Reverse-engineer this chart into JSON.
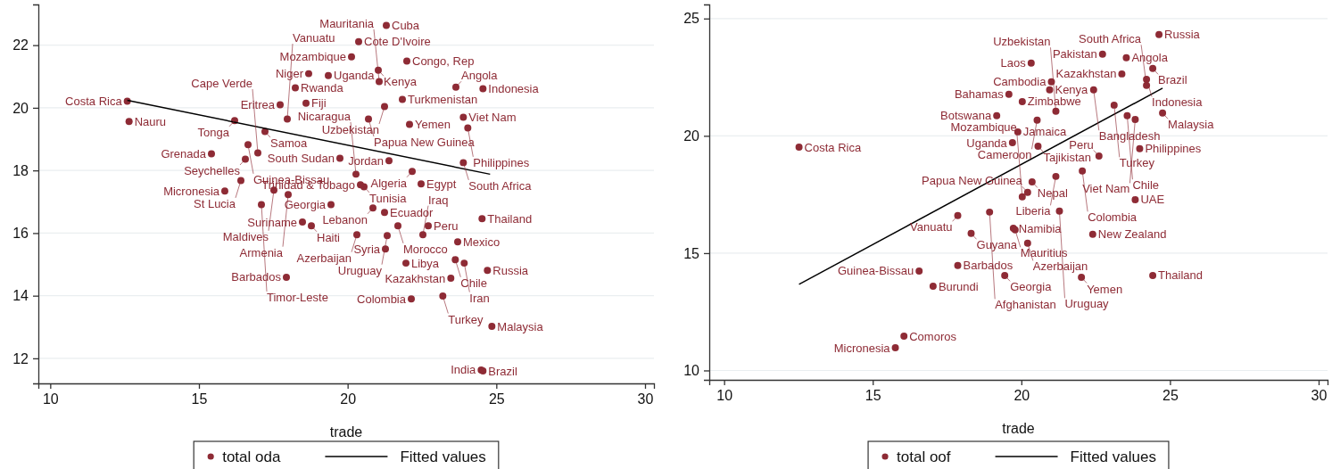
{
  "chart_data": [
    {
      "type": "scatter",
      "xlabel": "trade",
      "xlim": [
        9.6,
        30.3
      ],
      "ylim": [
        11.2,
        23.3
      ],
      "xticks": [
        10,
        15,
        20,
        25,
        30
      ],
      "yticks": [
        12,
        14,
        16,
        18,
        20,
        22
      ],
      "grid": "y",
      "legend": "bottom",
      "series": [
        {
          "name": "total oda",
          "type": "scatter",
          "marker": "circle",
          "color": "#8e2b35",
          "x": [
            12.59,
            12.65,
            21.3,
            20.37,
            20.13,
            21.99,
            18.69,
            18.24,
            17.73,
            18.6,
            19.35,
            21.03,
            21.06,
            23.64,
            24.55,
            21.84,
            21.24,
            20.7,
            23.89,
            24.04,
            22.08,
            19.74,
            21.39,
            23.89,
            22.17,
            22.47,
            20.55,
            19.44,
            20.85,
            21.24,
            24.52,
            21.69,
            22.71,
            18.48,
            18.78,
            20.31,
            21.33,
            22.53,
            23.7,
            21.27,
            21.96,
            23.62,
            23.92,
            24.7,
            17.94,
            23.47,
            23.2,
            22.14,
            24.85,
            24.49,
            24.55,
            16.2,
            17.22,
            16.65,
            15.42,
            16.98,
            16.56,
            16.41,
            15.87,
            17.52,
            18.0,
            17.1,
            17.97,
            20.28,
            20.43
          ],
          "values": [
            20.21,
            19.56,
            22.63,
            22.11,
            21.63,
            21.49,
            21.09,
            20.64,
            20.1,
            20.15,
            21.03,
            21.2,
            20.84,
            20.66,
            20.61,
            20.27,
            20.04,
            19.64,
            19.7,
            19.36,
            19.47,
            18.39,
            18.31,
            18.25,
            17.97,
            17.57,
            17.48,
            16.91,
            16.8,
            16.66,
            16.46,
            16.23,
            16.23,
            16.35,
            16.23,
            15.95,
            15.92,
            15.95,
            15.72,
            15.49,
            15.04,
            15.15,
            15.04,
            14.81,
            14.59,
            14.56,
            13.99,
            13.9,
            13.02,
            11.63,
            11.6,
            19.59,
            19.24,
            18.82,
            18.53,
            18.56,
            18.36,
            17.68,
            17.34,
            17.37,
            17.23,
            16.91,
            19.64,
            17.88,
            17.54
          ]
        },
        {
          "name": "Fitted values",
          "type": "line",
          "marker": "none",
          "color": "#000000",
          "x": [
            12.59,
            24.79
          ],
          "values": [
            20.24,
            17.88
          ]
        }
      ],
      "annotations": [
        {
          "text": "Costa Rica",
          "x": 12.59,
          "y": 20.21
        },
        {
          "text": "Nauru",
          "x": 12.65,
          "y": 19.56
        },
        {
          "text": "Cuba",
          "x": 21.3,
          "y": 22.63
        },
        {
          "text": "Cote D'Ivoire",
          "x": 20.37,
          "y": 22.11
        },
        {
          "text": "Mozambique",
          "x": 20.13,
          "y": 21.63
        },
        {
          "text": "Congo, Rep",
          "x": 21.99,
          "y": 21.49
        },
        {
          "text": "Niger",
          "x": 18.69,
          "y": 21.09
        },
        {
          "text": "Rwanda",
          "x": 18.24,
          "y": 20.64
        },
        {
          "text": "Eritrea",
          "x": 17.73,
          "y": 20.1
        },
        {
          "text": "Fiji",
          "x": 18.6,
          "y": 20.15
        },
        {
          "text": "Uganda",
          "x": 19.35,
          "y": 21.03
        },
        {
          "text": "Kenya",
          "x": 21.03,
          "y": 21.2
        },
        {
          "text": "Mauritania",
          "x": 21.06,
          "y": 20.84
        },
        {
          "text": "Angola",
          "x": 23.64,
          "y": 20.66
        },
        {
          "text": "Indonesia",
          "x": 24.55,
          "y": 20.61
        },
        {
          "text": "Turkmenistan",
          "x": 21.84,
          "y": 20.27
        },
        {
          "text": "Uzbekistan",
          "x": 21.24,
          "y": 20.04
        },
        {
          "text": "Papua New Guinea",
          "x": 20.7,
          "y": 19.64
        },
        {
          "text": "Viet Nam",
          "x": 23.89,
          "y": 19.7
        },
        {
          "text": "Philippines",
          "x": 24.04,
          "y": 19.36
        },
        {
          "text": "Yemen",
          "x": 22.08,
          "y": 19.47
        },
        {
          "text": "South Sudan",
          "x": 19.74,
          "y": 18.39
        },
        {
          "text": "Jordan",
          "x": 21.39,
          "y": 18.31
        },
        {
          "text": "South Africa",
          "x": 23.89,
          "y": 18.25
        },
        {
          "text": "Algeria",
          "x": 22.17,
          "y": 17.97
        },
        {
          "text": "Egypt",
          "x": 22.47,
          "y": 17.57
        },
        {
          "text": "Tunisia",
          "x": 20.55,
          "y": 17.48
        },
        {
          "text": "Georgia",
          "x": 19.44,
          "y": 16.91
        },
        {
          "text": "Lebanon",
          "x": 20.85,
          "y": 16.8
        },
        {
          "text": "Ecuador",
          "x": 21.24,
          "y": 16.66
        },
        {
          "text": "Thailand",
          "x": 24.52,
          "y": 16.46
        },
        {
          "text": "Morocco",
          "x": 21.69,
          "y": 16.23
        },
        {
          "text": "Peru",
          "x": 22.71,
          "y": 16.23
        },
        {
          "text": "Suriname",
          "x": 18.48,
          "y": 16.35
        },
        {
          "text": "Haiti",
          "x": 18.78,
          "y": 16.23
        },
        {
          "text": "Azerbaijan",
          "x": 20.31,
          "y": 15.95
        },
        {
          "text": "Uruguay",
          "x": 21.33,
          "y": 15.92
        },
        {
          "text": "Iraq",
          "x": 22.53,
          "y": 15.95
        },
        {
          "text": "Mexico",
          "x": 23.7,
          "y": 15.72
        },
        {
          "text": "Syria",
          "x": 21.27,
          "y": 15.49
        },
        {
          "text": "Libya",
          "x": 21.96,
          "y": 15.04
        },
        {
          "text": "Chile",
          "x": 23.62,
          "y": 15.15
        },
        {
          "text": "Iran",
          "x": 23.92,
          "y": 15.04
        },
        {
          "text": "Russia",
          "x": 24.7,
          "y": 14.81
        },
        {
          "text": "Barbados",
          "x": 17.94,
          "y": 14.59
        },
        {
          "text": "Kazakhstan",
          "x": 23.47,
          "y": 14.56
        },
        {
          "text": "Turkey",
          "x": 23.2,
          "y": 13.99
        },
        {
          "text": "Colombia",
          "x": 22.14,
          "y": 13.9
        },
        {
          "text": "Malaysia",
          "x": 24.85,
          "y": 13.02
        },
        {
          "text": "India",
          "x": 24.49,
          "y": 11.63
        },
        {
          "text": "Brazil",
          "x": 24.55,
          "y": 11.6
        },
        {
          "text": "Tonga",
          "x": 16.2,
          "y": 19.59
        },
        {
          "text": "Samoa",
          "x": 17.22,
          "y": 19.24
        },
        {
          "text": "Guinea-Bissau",
          "x": 16.65,
          "y": 18.82
        },
        {
          "text": "Grenada",
          "x": 15.42,
          "y": 18.53
        },
        {
          "text": "Cape Verde",
          "x": 16.98,
          "y": 18.56
        },
        {
          "text": "Seychelles",
          "x": 16.56,
          "y": 18.36
        },
        {
          "text": "St Lucia",
          "x": 16.41,
          "y": 17.68
        },
        {
          "text": "Micronesia",
          "x": 15.87,
          "y": 17.34
        },
        {
          "text": "Maldives",
          "x": 17.52,
          "y": 17.37
        },
        {
          "text": "Armenia",
          "x": 18.0,
          "y": 17.23
        },
        {
          "text": "Timor-Leste",
          "x": 17.1,
          "y": 16.91
        },
        {
          "text": "Vanuatu",
          "x": 17.97,
          "y": 19.64
        },
        {
          "text": "Nicaragua",
          "x": 20.28,
          "y": 17.88
        },
        {
          "text": "Trinidad & Tobago",
          "x": 20.43,
          "y": 17.54
        }
      ]
    },
    {
      "type": "scatter",
      "xlabel": "trade",
      "xlim": [
        9.5,
        30.3
      ],
      "ylim": [
        9.6,
        25.6
      ],
      "xticks": [
        10,
        15,
        20,
        25,
        30
      ],
      "yticks": [
        10,
        15,
        20,
        25
      ],
      "grid": "y",
      "legend": "bottom",
      "series": [
        {
          "name": "total oof",
          "type": "scatter",
          "marker": "circle",
          "color": "#8e2b35",
          "x": [
            12.52,
            17.86,
            18.31,
            19.73,
            19.79,
            20.21,
            22.4,
            17.86,
            16.56,
            19.44,
            22.02,
            24.42,
            17.03,
            16.05,
            15.76,
            24.63,
            22.73,
            20.33,
            23.53,
            24.42,
            23.38,
            24.21,
            24.21,
            21.01,
            20.95,
            22.43,
            19.58,
            20.03,
            23.12,
            21.16,
            24.75,
            23.56,
            23.83,
            20.53,
            19.17,
            19.88,
            19.7,
            23.98,
            20.56,
            22.61,
            22.05,
            21.16,
            20.36,
            20.21,
            23.83,
            20.03,
            21.28,
            18.93
          ],
          "values": [
            19.52,
            16.6,
            15.84,
            16.06,
            15.99,
            15.42,
            15.8,
            14.47,
            14.24,
            14.05,
            13.97,
            14.05,
            13.59,
            11.46,
            10.97,
            24.32,
            23.48,
            23.1,
            23.33,
            22.87,
            22.64,
            22.41,
            22.15,
            22.3,
            21.96,
            21.96,
            21.77,
            21.46,
            21.31,
            21.05,
            20.97,
            20.86,
            20.7,
            20.67,
            20.86,
            20.17,
            19.71,
            19.45,
            19.56,
            19.14,
            18.5,
            18.27,
            18.04,
            17.59,
            17.28,
            17.4,
            16.79,
            16.75
          ]
        },
        {
          "name": "Fitted values",
          "type": "line",
          "marker": "none",
          "color": "#000000",
          "x": [
            12.52,
            24.75
          ],
          "values": [
            13.67,
            22.03
          ]
        }
      ],
      "annotations": [
        {
          "text": "Costa Rica",
          "x": 12.52,
          "y": 19.52
        },
        {
          "text": "Vanuatu",
          "x": 17.86,
          "y": 16.6
        },
        {
          "text": "Guyana",
          "x": 18.31,
          "y": 15.84
        },
        {
          "text": "Namibia",
          "x": 19.73,
          "y": 16.06
        },
        {
          "text": "Mauritius",
          "x": 19.79,
          "y": 15.99
        },
        {
          "text": "Azerbaijan",
          "x": 20.21,
          "y": 15.42
        },
        {
          "text": "New Zealand",
          "x": 22.4,
          "y": 15.8
        },
        {
          "text": "Barbados",
          "x": 17.86,
          "y": 14.47
        },
        {
          "text": "Guinea-Bissau",
          "x": 16.56,
          "y": 14.24
        },
        {
          "text": "Georgia",
          "x": 19.44,
          "y": 14.05
        },
        {
          "text": "Yemen",
          "x": 22.02,
          "y": 13.97
        },
        {
          "text": "Thailand",
          "x": 24.42,
          "y": 14.05
        },
        {
          "text": "Burundi",
          "x": 17.03,
          "y": 13.59
        },
        {
          "text": "Comoros",
          "x": 16.05,
          "y": 11.46
        },
        {
          "text": "Micronesia",
          "x": 15.76,
          "y": 10.97
        },
        {
          "text": "Russia",
          "x": 24.63,
          "y": 24.32
        },
        {
          "text": "Pakistan",
          "x": 22.73,
          "y": 23.48
        },
        {
          "text": "Laos",
          "x": 20.33,
          "y": 23.1
        },
        {
          "text": "Angola",
          "x": 23.53,
          "y": 23.33
        },
        {
          "text": "Brazil",
          "x": 24.42,
          "y": 22.87
        },
        {
          "text": "Kazakhstan",
          "x": 23.38,
          "y": 22.64
        },
        {
          "text": "Indonesia",
          "x": 24.21,
          "y": 22.41
        },
        {
          "text": "South Africa",
          "x": 24.21,
          "y": 22.15
        },
        {
          "text": "Cambodia",
          "x": 21.01,
          "y": 22.3
        },
        {
          "text": "Kenya",
          "x": 20.95,
          "y": 21.96
        },
        {
          "text": "Bangladesh",
          "x": 22.43,
          "y": 21.96
        },
        {
          "text": "Bahamas",
          "x": 19.58,
          "y": 21.77
        },
        {
          "text": "Zimbabwe",
          "x": 20.03,
          "y": 21.46
        },
        {
          "text": "Turkey",
          "x": 23.12,
          "y": 21.31
        },
        {
          "text": "Uzbekistan",
          "x": 21.16,
          "y": 21.05
        },
        {
          "text": "Malaysia",
          "x": 24.75,
          "y": 20.97
        },
        {
          "text": "Chile",
          "x": 23.56,
          "y": 20.86
        },
        {
          "text": "Viet Nam",
          "x": 23.83,
          "y": 20.7
        },
        {
          "text": "Cameroon",
          "x": 20.53,
          "y": 20.67
        },
        {
          "text": "Botswana",
          "x": 19.17,
          "y": 20.86
        },
        {
          "text": "Jamaica",
          "x": 19.88,
          "y": 20.17
        },
        {
          "text": "Uganda",
          "x": 19.7,
          "y": 19.71
        },
        {
          "text": "Philippines",
          "x": 23.98,
          "y": 19.45
        },
        {
          "text": "Tajikistan",
          "x": 20.56,
          "y": 19.56
        },
        {
          "text": "Peru",
          "x": 22.61,
          "y": 19.14
        },
        {
          "text": "Colombia",
          "x": 22.05,
          "y": 18.5
        },
        {
          "text": "Liberia",
          "x": 21.16,
          "y": 18.27
        },
        {
          "text": "Nepal",
          "x": 20.36,
          "y": 18.04
        },
        {
          "text": "Papua New Guinea",
          "x": 20.21,
          "y": 17.59
        },
        {
          "text": "UAE",
          "x": 23.83,
          "y": 17.28
        },
        {
          "text": "Mozambique",
          "x": 20.03,
          "y": 17.4
        },
        {
          "text": "Uruguay",
          "x": 21.28,
          "y": 16.79
        },
        {
          "text": "Afghanistan",
          "x": 18.93,
          "y": 16.75
        }
      ]
    }
  ]
}
